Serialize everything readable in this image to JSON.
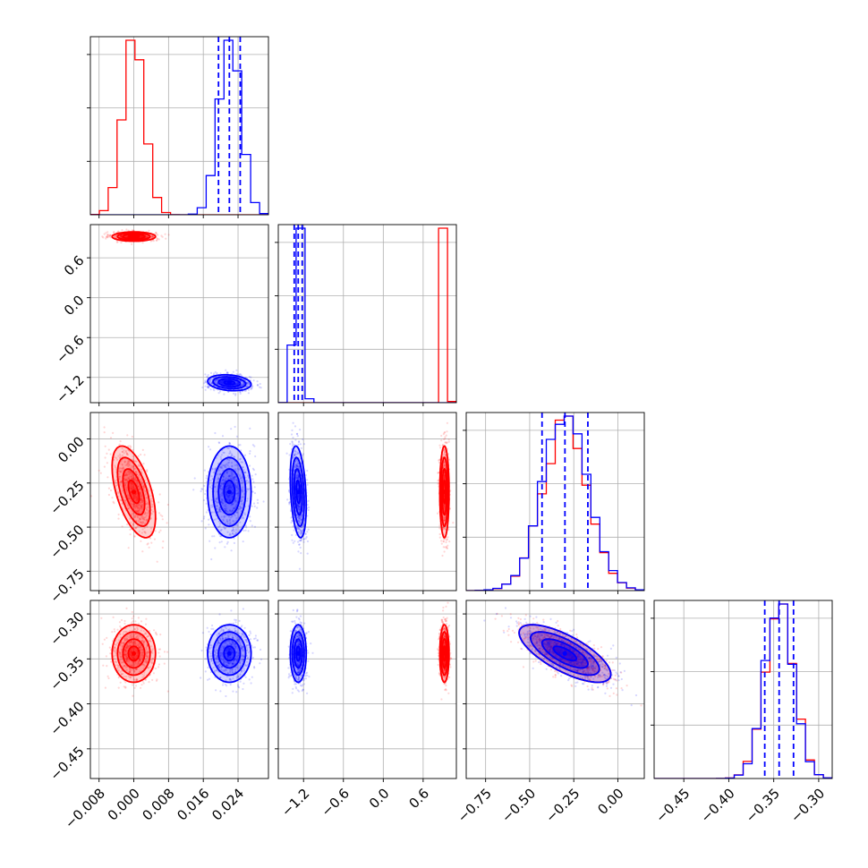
{
  "colors": {
    "red": "#ff0000",
    "blue": "#0000ff",
    "grid": "#b0b0b0"
  },
  "chart_data": {
    "type": "corner",
    "grid": true,
    "parameters": [
      {
        "range": [
          -0.01,
          0.031
        ],
        "ticks": [
          -0.008,
          0.0,
          0.008,
          0.016,
          0.024
        ],
        "tick_labels": [
          "−0.008",
          "0.000",
          "0.008",
          "0.016",
          "0.024"
        ]
      },
      {
        "range": [
          -1.58,
          1.1
        ],
        "ticks": [
          -1.2,
          -0.6,
          0.0,
          0.6
        ],
        "tick_labels": [
          "−1.2",
          "−0.6",
          "0.0",
          "0.6"
        ]
      },
      {
        "range": [
          -0.86,
          0.15
        ],
        "ticks": [
          -0.75,
          -0.5,
          -0.25,
          0.0
        ],
        "tick_labels": [
          "−0.75",
          "−0.50",
          "−0.25",
          "0.00"
        ]
      },
      {
        "range": [
          -0.483,
          -0.285
        ],
        "ticks": [
          -0.45,
          -0.4,
          -0.35,
          -0.3
        ],
        "tick_labels": [
          "−0.45",
          "−0.40",
          "−0.35",
          "−0.30"
        ]
      }
    ],
    "series": [
      {
        "color": "red",
        "means": [
          0.0,
          0.92,
          -0.3,
          -0.344
        ],
        "sds": [
          0.0025,
          0.035,
          0.13,
          0.016
        ],
        "corr": [
          [
            0,
            2,
            -0.55
          ],
          [
            2,
            3,
            -0.72
          ]
        ],
        "quantiles_shown": false
      },
      {
        "color": "blue",
        "means": [
          0.022,
          -1.28,
          -0.3,
          -0.344
        ],
        "sds": [
          0.0025,
          0.06,
          0.13,
          0.016
        ],
        "corr": [
          [
            0,
            1,
            -0.2
          ],
          [
            1,
            2,
            -0.3
          ],
          [
            2,
            3,
            -0.72
          ]
        ],
        "quantiles_shown": true
      }
    ]
  }
}
